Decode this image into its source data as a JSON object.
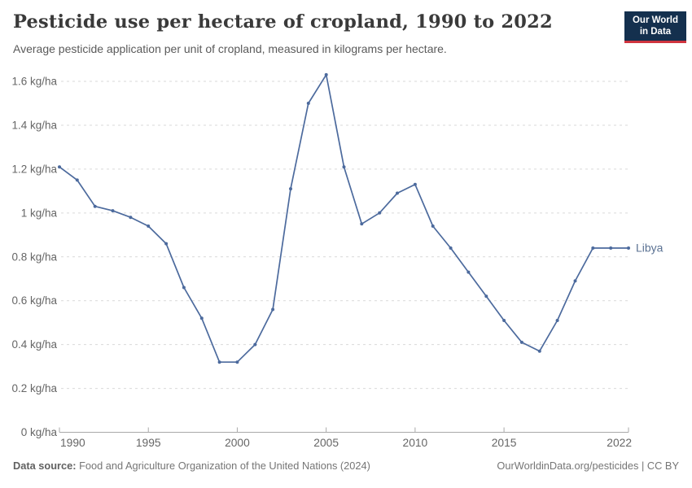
{
  "chart_data": {
    "type": "line",
    "title": "Pesticide use per hectare of cropland, 1990 to 2022",
    "subtitle": "Average pesticide application per unit of cropland, measured in kilograms per hectare.",
    "x": [
      1990,
      1991,
      1992,
      1993,
      1994,
      1995,
      1996,
      1997,
      1998,
      1999,
      2000,
      2001,
      2002,
      2003,
      2004,
      2005,
      2006,
      2007,
      2008,
      2009,
      2010,
      2011,
      2012,
      2013,
      2014,
      2015,
      2016,
      2017,
      2018,
      2019,
      2020,
      2021,
      2022
    ],
    "series": [
      {
        "name": "Libya",
        "color": "#4c6a9d",
        "label_color": "#5b7293",
        "values": [
          1.21,
          1.15,
          1.03,
          1.01,
          0.98,
          0.94,
          0.86,
          0.66,
          0.52,
          0.32,
          0.32,
          0.4,
          0.56,
          1.11,
          1.5,
          1.63,
          1.21,
          0.95,
          1.0,
          1.09,
          1.13,
          0.94,
          0.84,
          0.73,
          0.62,
          0.51,
          0.41,
          0.37,
          0.51,
          0.69,
          0.84,
          0.84,
          0.84
        ]
      }
    ],
    "x_ticks": [
      1990,
      1995,
      2000,
      2005,
      2010,
      2015,
      2022
    ],
    "y_ticks": [
      0,
      0.2,
      0.4,
      0.6,
      0.8,
      1,
      1.2,
      1.4,
      1.6
    ],
    "y_tick_suffix": " kg/ha",
    "xlim": [
      1990,
      2022
    ],
    "ylim": [
      0,
      1.6
    ],
    "grid": "horizontal dashed",
    "legend_position": "end-of-line label",
    "grid_color": "#d9d9d9",
    "axis_color": "#a9a9a9",
    "tick_label_color": "#666666"
  },
  "header": {
    "logo": {
      "line1": "Our World",
      "line2": "in Data",
      "bg_color": "#14304e",
      "accent_color": "#d0343f"
    }
  },
  "footer": {
    "source_label": "Data source:",
    "source_value": " Food and Agriculture Organization of the United Nations (2024)",
    "credit": "OurWorldinData.org/pesticides | CC BY"
  }
}
